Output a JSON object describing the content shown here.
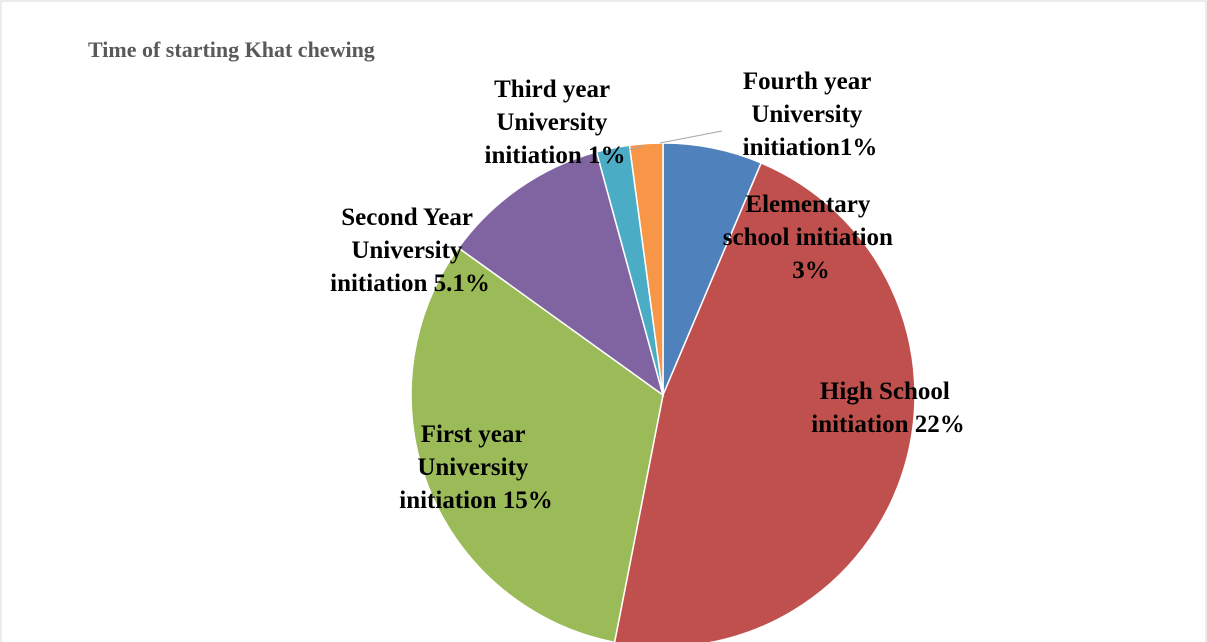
{
  "chart_data": {
    "type": "pie",
    "title": "Time of starting Khat chewing",
    "values": [
      3,
      22,
      15,
      5.1,
      1,
      1
    ],
    "value_labels": [
      "Elementary school initiation 3%",
      "High School initiation 22%",
      "First year University initiation 15%",
      "Second Year University initiation 5.1%",
      "Third year University initiation 1%",
      "Fourth year University initiation1%"
    ],
    "colors": [
      "#4f81bd",
      "#c0504d",
      "#9bbb59",
      "#8064a2",
      "#4bacc6",
      "#f79646"
    ]
  }
}
